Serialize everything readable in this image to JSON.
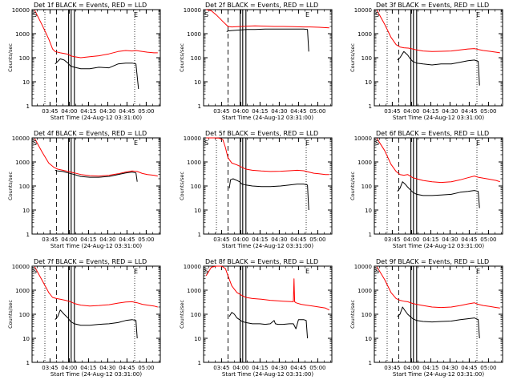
{
  "figure": {
    "colors": {
      "events": "#000000",
      "lld": "#ff0000",
      "background": "#ffffff"
    },
    "ylabel": "Counts/sec",
    "xlabel": "Start Time (24-Aug-12 03:31:00)",
    "yticks": [
      "1",
      "10",
      "100",
      "1000",
      "10000"
    ],
    "xticks": [
      "03:45",
      "04:00",
      "04:15",
      "04:30",
      "04:45",
      "05:00"
    ],
    "corner_marks": {
      "start": "S",
      "end": "E"
    }
  },
  "chart_data": [
    {
      "type": "line",
      "title": "Det 1f BLACK = Events, RED = LLD",
      "xlabel": "Start Time (24-Aug-12 03:31:00)",
      "ylabel": "Counts/sec",
      "x_unit": "minutes after 03:31:00",
      "xlim": [
        0,
        100
      ],
      "ylim": [
        1,
        10000
      ],
      "yscale": "log",
      "markers": {
        "dotted": [
          10,
          80
        ],
        "dashed": [
          19
        ],
        "solid": [
          28.5,
          30.5,
          33
        ]
      },
      "series": [
        {
          "name": "LLD",
          "color": "#ff0000",
          "x": [
            2,
            8,
            13,
            16,
            18,
            22,
            25,
            28,
            30,
            33,
            38,
            45,
            52,
            60,
            67,
            73,
            78,
            81,
            85,
            90,
            95,
            98
          ],
          "y": [
            9500,
            2200,
            600,
            230,
            180,
            160,
            150,
            140,
            120,
            110,
            100,
            110,
            120,
            145,
            180,
            200,
            190,
            200,
            185,
            170,
            160,
            160
          ]
        },
        {
          "name": "Events",
          "color": "#000000",
          "x": [
            18,
            20,
            22,
            25,
            28,
            30,
            33,
            38,
            45,
            52,
            60,
            67,
            73,
            78,
            81,
            83
          ],
          "y": [
            55,
            70,
            90,
            80,
            60,
            45,
            40,
            35,
            35,
            40,
            38,
            55,
            60,
            60,
            55,
            5
          ]
        }
      ]
    },
    {
      "type": "line",
      "title": "Det 2f BLACK = Events, RED = LLD",
      "xlabel": "Start Time (24-Aug-12 03:31:00)",
      "ylabel": "Counts/sec",
      "x_unit": "minutes after 03:31:00",
      "xlim": [
        0,
        100
      ],
      "ylim": [
        1,
        10000
      ],
      "yscale": "log",
      "markers": {
        "dotted": [],
        "dashed": [
          19
        ],
        "solid": [
          28.5,
          30.5,
          33
        ]
      },
      "series": [
        {
          "name": "LLD",
          "color": "#ff0000",
          "x": [
            2,
            6,
            10,
            15,
            19,
            22,
            26,
            30,
            34,
            40,
            48,
            55,
            62,
            70,
            78,
            83,
            90,
            98
          ],
          "y": [
            10000,
            9000,
            6000,
            3200,
            2000,
            1900,
            1950,
            2000,
            2050,
            2100,
            2050,
            2000,
            2000,
            1950,
            1900,
            1900,
            1850,
            1750
          ]
        },
        {
          "name": "Events",
          "color": "#000000",
          "x": [
            18,
            19,
            22,
            26,
            30,
            34,
            40,
            48,
            55,
            62,
            70,
            78,
            81,
            82
          ],
          "y": [
            1200,
            1300,
            1350,
            1400,
            1450,
            1500,
            1500,
            1550,
            1550,
            1550,
            1550,
            1550,
            1500,
            180
          ]
        }
      ]
    },
    {
      "type": "line",
      "title": "Det 3f BLACK = Events, RED = LLD",
      "xlabel": "Start Time (24-Aug-12 03:31:00)",
      "ylabel": "Counts/sec",
      "x_unit": "minutes after 03:31:00",
      "xlim": [
        0,
        100
      ],
      "ylim": [
        1,
        10000
      ],
      "yscale": "log",
      "markers": {
        "dotted": [
          10,
          80
        ],
        "dashed": [
          19
        ],
        "solid": [
          28.5,
          30.5,
          33
        ]
      },
      "series": [
        {
          "name": "LLD",
          "color": "#ff0000",
          "x": [
            2,
            8,
            13,
            17,
            20,
            23,
            27,
            30,
            33,
            38,
            45,
            52,
            60,
            67,
            73,
            78,
            81,
            85,
            90,
            95,
            98
          ],
          "y": [
            9500,
            2500,
            700,
            350,
            280,
            260,
            250,
            230,
            210,
            190,
            180,
            185,
            190,
            210,
            230,
            240,
            220,
            200,
            185,
            170,
            160
          ]
        },
        {
          "name": "Events",
          "color": "#000000",
          "x": [
            18,
            20,
            23,
            26,
            28,
            30,
            33,
            38,
            45,
            52,
            60,
            67,
            73,
            78,
            81,
            82
          ],
          "y": [
            80,
            100,
            180,
            130,
            90,
            70,
            60,
            55,
            50,
            55,
            55,
            65,
            75,
            80,
            70,
            7
          ]
        }
      ]
    },
    {
      "type": "line",
      "title": "Det 4f BLACK = Events, RED = LLD",
      "xlabel": "Start Time (24-Aug-12 03:31:00)",
      "ylabel": "Counts/sec",
      "x_unit": "minutes after 03:31:00",
      "xlim": [
        0,
        100
      ],
      "ylim": [
        1,
        10000
      ],
      "yscale": "log",
      "markers": {
        "dotted": [],
        "dashed": [
          19
        ],
        "solid": [
          28.5,
          30.5,
          33
        ]
      },
      "series": [
        {
          "name": "LLD",
          "color": "#ff0000",
          "x": [
            2,
            8,
            13,
            17,
            20,
            24,
            28,
            33,
            38,
            45,
            52,
            60,
            67,
            73,
            78,
            82,
            86,
            90,
            95,
            98
          ],
          "y": [
            9500,
            2500,
            900,
            600,
            500,
            450,
            400,
            350,
            300,
            270,
            260,
            280,
            320,
            380,
            420,
            400,
            330,
            300,
            280,
            260
          ]
        },
        {
          "name": "Events",
          "color": "#000000",
          "x": [
            18,
            20,
            24,
            28,
            33,
            38,
            45,
            52,
            60,
            67,
            73,
            78,
            81,
            82
          ],
          "y": [
            450,
            420,
            400,
            350,
            300,
            250,
            230,
            230,
            250,
            300,
            350,
            380,
            350,
            150
          ]
        }
      ]
    },
    {
      "type": "line",
      "title": "Det 5f BLACK = Events, RED = LLD",
      "xlabel": "Start Time (24-Aug-12 03:31:00)",
      "ylabel": "Counts/sec",
      "x_unit": "minutes after 03:31:00",
      "xlim": [
        0,
        100
      ],
      "ylim": [
        1,
        10000
      ],
      "yscale": "log",
      "markers": {
        "dotted": [
          10,
          80
        ],
        "dashed": [
          19
        ],
        "solid": [
          28.5,
          30.5,
          33
        ]
      },
      "series": [
        {
          "name": "LLD",
          "color": "#ff0000",
          "x": [
            2,
            8,
            12,
            15,
            17,
            19,
            22,
            26,
            30,
            33,
            38,
            45,
            52,
            60,
            67,
            73,
            78,
            82,
            86,
            90,
            95,
            98
          ],
          "y": [
            10000,
            10000,
            9800,
            8500,
            4000,
            1500,
            900,
            750,
            600,
            500,
            450,
            420,
            400,
            410,
            430,
            450,
            430,
            380,
            340,
            320,
            300,
            300
          ]
        },
        {
          "name": "Events",
          "color": "#000000",
          "x": [
            20,
            21,
            23,
            26,
            28,
            30,
            33,
            38,
            45,
            52,
            60,
            67,
            73,
            78,
            81,
            82
          ],
          "y": [
            80,
            180,
            200,
            170,
            150,
            120,
            110,
            100,
            95,
            95,
            100,
            110,
            120,
            120,
            110,
            10
          ]
        }
      ]
    },
    {
      "type": "line",
      "title": "Det 6f BLACK = Events, RED = LLD",
      "xlabel": "Start Time (24-Aug-12 03:31:00)",
      "ylabel": "Counts/sec",
      "x_unit": "minutes after 03:31:00",
      "xlim": [
        0,
        100
      ],
      "ylim": [
        1,
        10000
      ],
      "yscale": "log",
      "markers": {
        "dotted": [
          10,
          80
        ],
        "dashed": [
          19
        ],
        "solid": [
          28.5,
          30.5,
          33
        ]
      },
      "series": [
        {
          "name": "LLD",
          "color": "#ff0000",
          "x": [
            2,
            8,
            13,
            17,
            20,
            23,
            26,
            30,
            33,
            38,
            45,
            52,
            60,
            67,
            73,
            78,
            81,
            85,
            90,
            95,
            98
          ],
          "y": [
            9500,
            3000,
            800,
            400,
            300,
            280,
            300,
            220,
            200,
            170,
            150,
            140,
            150,
            180,
            220,
            260,
            230,
            210,
            190,
            170,
            150
          ]
        },
        {
          "name": "Events",
          "color": "#000000",
          "x": [
            18,
            20,
            22,
            24,
            26,
            28,
            30,
            33,
            38,
            45,
            52,
            60,
            67,
            73,
            78,
            81,
            82
          ],
          "y": [
            60,
            80,
            150,
            120,
            90,
            70,
            55,
            45,
            40,
            40,
            42,
            45,
            55,
            60,
            65,
            60,
            12
          ]
        }
      ]
    },
    {
      "type": "line",
      "title": "Det 7f BLACK = Events, RED = LLD",
      "xlabel": "Start Time (24-Aug-12 03:31:00)",
      "ylabel": "Counts/sec",
      "x_unit": "minutes after 03:31:00",
      "xlim": [
        0,
        100
      ],
      "ylim": [
        1,
        10000
      ],
      "yscale": "log",
      "markers": {
        "dotted": [
          10,
          80
        ],
        "dashed": [
          19
        ],
        "solid": [
          28.5,
          30.5,
          33
        ]
      },
      "series": [
        {
          "name": "LLD",
          "color": "#ff0000",
          "x": [
            2,
            8,
            13,
            16,
            19,
            22,
            26,
            30,
            33,
            38,
            45,
            52,
            60,
            67,
            73,
            78,
            82,
            86,
            90,
            95,
            98
          ],
          "y": [
            9500,
            2500,
            800,
            500,
            450,
            420,
            380,
            330,
            280,
            240,
            220,
            230,
            250,
            290,
            320,
            330,
            300,
            260,
            240,
            220,
            200
          ]
        },
        {
          "name": "Events",
          "color": "#000000",
          "x": [
            18,
            20,
            22,
            25,
            28,
            30,
            33,
            38,
            45,
            52,
            60,
            67,
            73,
            78,
            81,
            82
          ],
          "y": [
            60,
            80,
            150,
            100,
            70,
            50,
            40,
            35,
            35,
            38,
            40,
            45,
            55,
            60,
            55,
            10
          ]
        }
      ]
    },
    {
      "type": "line",
      "title": "Det 8f BLACK = Events, RED = LLD",
      "xlabel": "Start Time (24-Aug-12 03:31:00)",
      "ylabel": "Counts/sec",
      "x_unit": "minutes after 03:31:00",
      "xlim": [
        0,
        100
      ],
      "ylim": [
        1,
        10000
      ],
      "yscale": "log",
      "markers": {
        "dotted": [],
        "dashed": [
          19
        ],
        "solid": [
          28.5,
          30.5,
          33
        ]
      },
      "series": [
        {
          "name": "LLD",
          "color": "#ff0000",
          "x": [
            2,
            6,
            10,
            14,
            17,
            19,
            22,
            26,
            30,
            33,
            38,
            45,
            52,
            58,
            62,
            67,
            70,
            70.5,
            71,
            72,
            76,
            80,
            85,
            90,
            95,
            98
          ],
          "y": [
            4000,
            9000,
            10000,
            10000,
            8000,
            4000,
            1500,
            800,
            600,
            500,
            450,
            420,
            380,
            360,
            350,
            340,
            330,
            3000,
            330,
            300,
            260,
            240,
            220,
            200,
            180,
            150
          ]
        },
        {
          "name": "Events",
          "color": "#000000",
          "x": [
            20,
            22,
            24,
            26,
            28,
            30,
            33,
            38,
            44,
            48,
            52,
            55,
            56,
            58,
            62,
            67,
            70,
            72,
            74,
            78,
            80,
            81
          ],
          "y": [
            80,
            120,
            100,
            70,
            60,
            50,
            45,
            40,
            40,
            38,
            40,
            55,
            40,
            38,
            38,
            40,
            40,
            25,
            60,
            60,
            55,
            10
          ]
        }
      ]
    },
    {
      "type": "line",
      "title": "Det 9f BLACK = Events, RED = LLD",
      "xlabel": "Start Time (24-Aug-12 03:31:00)",
      "ylabel": "Counts/sec",
      "x_unit": "minutes after 03:31:00",
      "xlim": [
        0,
        100
      ],
      "ylim": [
        1,
        10000
      ],
      "yscale": "log",
      "markers": {
        "dotted": [
          10,
          80
        ],
        "dashed": [
          19
        ],
        "solid": [
          28.5,
          30.5,
          33
        ]
      },
      "series": [
        {
          "name": "LLD",
          "color": "#ff0000",
          "x": [
            2,
            8,
            13,
            17,
            20,
            23,
            26,
            30,
            33,
            38,
            45,
            52,
            60,
            67,
            73,
            78,
            81,
            85,
            90,
            95,
            98
          ],
          "y": [
            9500,
            2800,
            800,
            450,
            380,
            350,
            330,
            280,
            260,
            230,
            200,
            190,
            200,
            230,
            270,
            300,
            260,
            230,
            210,
            190,
            180
          ]
        },
        {
          "name": "Events",
          "color": "#000000",
          "x": [
            18,
            20,
            22,
            24,
            26,
            28,
            30,
            33,
            38,
            45,
            52,
            60,
            67,
            73,
            78,
            81,
            82
          ],
          "y": [
            80,
            100,
            200,
            140,
            100,
            80,
            65,
            55,
            50,
            48,
            50,
            52,
            60,
            65,
            70,
            60,
            10
          ]
        }
      ]
    }
  ]
}
